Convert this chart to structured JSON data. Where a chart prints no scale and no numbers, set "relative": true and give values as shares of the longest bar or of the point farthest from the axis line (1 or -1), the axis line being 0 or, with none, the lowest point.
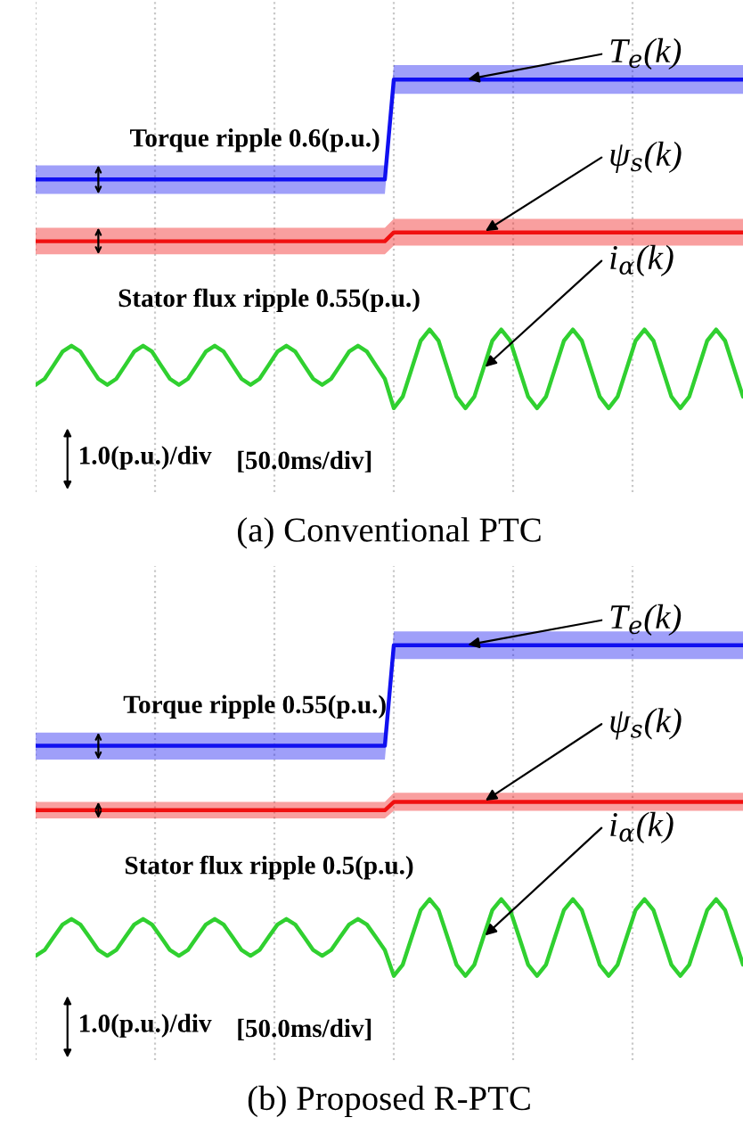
{
  "chart_data": [
    {
      "type": "line",
      "title": "(a) Conventional PTC",
      "relative": true,
      "grid": "x",
      "categories": [
        null,
        null,
        null,
        null,
        null,
        null,
        null,
        null,
        null,
        null,
        null,
        null,
        null,
        null,
        null,
        null,
        null,
        null,
        null,
        null,
        null,
        null,
        null,
        null,
        null,
        null,
        null,
        null,
        null,
        null,
        null,
        null,
        null,
        null,
        null,
        null,
        null,
        null,
        null,
        null,
        null,
        null,
        null,
        null,
        null,
        null,
        null,
        null,
        null,
        null,
        null,
        null,
        null,
        null,
        null,
        null,
        null,
        null,
        null,
        null,
        null,
        null,
        null,
        null,
        null,
        null,
        null,
        null,
        null,
        null,
        null,
        null,
        null,
        null,
        null,
        null,
        null,
        null,
        null,
        null
      ],
      "annotations": [
        "Torque ripple 0.6(p.u.)",
        "Stator flux ripple 0.55(p.u.)",
        "1.0(p.u.)/div",
        "[50.0ms/div]"
      ],
      "series": [
        {
          "name": "T$_{e}$(k)",
          "color": "#1010f0",
          "values": [
            0.696,
            0.696,
            0.696,
            0.696,
            0.696,
            0.696,
            0.696,
            0.696,
            0.696,
            0.696,
            0.696,
            0.696,
            0.696,
            0.696,
            0.696,
            0.696,
            0.696,
            0.696,
            0.696,
            0.696,
            0.696,
            0.696,
            0.696,
            0.696,
            0.696,
            0.696,
            0.696,
            0.696,
            0.696,
            0.696,
            0.696,
            0.696,
            0.696,
            0.696,
            0.696,
            0.696,
            0.696,
            0.696,
            0.696,
            0.696,
            1,
            1,
            1,
            1,
            1,
            1,
            1,
            1,
            1,
            1,
            1,
            1,
            1,
            1,
            1,
            1,
            1,
            1,
            1,
            1,
            1,
            1,
            1,
            1,
            1,
            1,
            1,
            1,
            1,
            1,
            1,
            1,
            1,
            1,
            1,
            1,
            1,
            1,
            1,
            1
          ],
          "lower": [
            0.652,
            0.652,
            0.652,
            0.652,
            0.652,
            0.652,
            0.652,
            0.652,
            0.652,
            0.652,
            0.652,
            0.652,
            0.652,
            0.652,
            0.652,
            0.652,
            0.652,
            0.652,
            0.652,
            0.652,
            0.652,
            0.652,
            0.652,
            0.652,
            0.652,
            0.652,
            0.652,
            0.652,
            0.652,
            0.652,
            0.652,
            0.652,
            0.652,
            0.652,
            0.652,
            0.652,
            0.652,
            0.652,
            0.652,
            0.652,
            0.957,
            0.957,
            0.957,
            0.957,
            0.957,
            0.957,
            0.957,
            0.957,
            0.957,
            0.957,
            0.957,
            0.957,
            0.957,
            0.957,
            0.957,
            0.957,
            0.957,
            0.957,
            0.957,
            0.957,
            0.957,
            0.957,
            0.957,
            0.957,
            0.957,
            0.957,
            0.957,
            0.957,
            0.957,
            0.957,
            0.957,
            0.957,
            0.957,
            0.957,
            0.957,
            0.957,
            0.957,
            0.957,
            0.957,
            0.957
          ],
          "upper": [
            0.739,
            0.739,
            0.739,
            0.739,
            0.739,
            0.739,
            0.739,
            0.739,
            0.739,
            0.739,
            0.739,
            0.739,
            0.739,
            0.739,
            0.739,
            0.739,
            0.739,
            0.739,
            0.739,
            0.739,
            0.739,
            0.739,
            0.739,
            0.739,
            0.739,
            0.739,
            0.739,
            0.739,
            0.739,
            0.739,
            0.739,
            0.739,
            0.739,
            0.739,
            0.739,
            0.739,
            0.739,
            0.739,
            0.739,
            0.739,
            1.044,
            1.044,
            1.044,
            1.044,
            1.044,
            1.044,
            1.044,
            1.044,
            1.044,
            1.044,
            1.044,
            1.044,
            1.044,
            1.044,
            1.044,
            1.044,
            1.044,
            1.044,
            1.044,
            1.044,
            1.044,
            1.044,
            1.044,
            1.044,
            1.044,
            1.044,
            1.044,
            1.044,
            1.044,
            1.044,
            1.044,
            1.044,
            1.044,
            1.044,
            1.044,
            1.044,
            1.044,
            1.044,
            1.044,
            1.044
          ]
        },
        {
          "name": "ψ$_{s}$(k)",
          "color": "#f01010",
          "values": [
            0.508,
            0.508,
            0.508,
            0.508,
            0.508,
            0.508,
            0.508,
            0.508,
            0.508,
            0.508,
            0.508,
            0.508,
            0.508,
            0.508,
            0.508,
            0.508,
            0.508,
            0.508,
            0.508,
            0.508,
            0.508,
            0.508,
            0.508,
            0.508,
            0.508,
            0.508,
            0.508,
            0.508,
            0.508,
            0.508,
            0.508,
            0.508,
            0.508,
            0.508,
            0.508,
            0.508,
            0.508,
            0.508,
            0.508,
            0.508,
            0.535,
            0.535,
            0.535,
            0.535,
            0.535,
            0.535,
            0.535,
            0.535,
            0.535,
            0.535,
            0.535,
            0.535,
            0.535,
            0.535,
            0.535,
            0.535,
            0.535,
            0.535,
            0.535,
            0.535,
            0.535,
            0.535,
            0.535,
            0.535,
            0.535,
            0.535,
            0.535,
            0.535,
            0.535,
            0.535,
            0.535,
            0.535,
            0.535,
            0.535,
            0.535,
            0.535,
            0.535,
            0.535,
            0.535,
            0.535
          ],
          "lower": [
            0.468,
            0.468,
            0.468,
            0.468,
            0.468,
            0.468,
            0.468,
            0.468,
            0.468,
            0.468,
            0.468,
            0.468,
            0.468,
            0.468,
            0.468,
            0.468,
            0.468,
            0.468,
            0.468,
            0.468,
            0.468,
            0.468,
            0.468,
            0.468,
            0.468,
            0.468,
            0.468,
            0.468,
            0.468,
            0.468,
            0.468,
            0.468,
            0.468,
            0.468,
            0.468,
            0.468,
            0.468,
            0.468,
            0.468,
            0.468,
            0.495,
            0.495,
            0.495,
            0.495,
            0.495,
            0.495,
            0.495,
            0.495,
            0.495,
            0.495,
            0.495,
            0.495,
            0.495,
            0.495,
            0.495,
            0.495,
            0.495,
            0.495,
            0.495,
            0.495,
            0.495,
            0.495,
            0.495,
            0.495,
            0.495,
            0.495,
            0.495,
            0.495,
            0.495,
            0.495,
            0.495,
            0.495,
            0.495,
            0.495,
            0.495,
            0.495,
            0.495,
            0.495,
            0.495,
            0.495
          ],
          "upper": [
            0.549,
            0.549,
            0.549,
            0.549,
            0.549,
            0.549,
            0.549,
            0.549,
            0.549,
            0.549,
            0.549,
            0.549,
            0.549,
            0.549,
            0.549,
            0.549,
            0.549,
            0.549,
            0.549,
            0.549,
            0.549,
            0.549,
            0.549,
            0.549,
            0.549,
            0.549,
            0.549,
            0.549,
            0.549,
            0.549,
            0.549,
            0.549,
            0.549,
            0.549,
            0.549,
            0.549,
            0.549,
            0.549,
            0.549,
            0.549,
            0.576,
            0.576,
            0.576,
            0.576,
            0.576,
            0.576,
            0.576,
            0.576,
            0.576,
            0.576,
            0.576,
            0.576,
            0.576,
            0.576,
            0.576,
            0.576,
            0.576,
            0.576,
            0.576,
            0.576,
            0.576,
            0.576,
            0.576,
            0.576,
            0.576,
            0.576,
            0.576,
            0.576,
            0.576,
            0.576,
            0.576,
            0.576,
            0.576,
            0.576,
            0.576,
            0.576,
            0.576,
            0.576,
            0.576,
            0.576
          ]
        },
        {
          "name": "i$_{α}$(k)",
          "color": "#30d030",
          "values": [
            0.071,
            0.089,
            0.13,
            0.172,
            0.19,
            0.172,
            0.13,
            0.089,
            0.071,
            0.089,
            0.13,
            0.172,
            0.19,
            0.172,
            0.13,
            0.089,
            0.071,
            0.089,
            0.13,
            0.172,
            0.19,
            0.172,
            0.13,
            0.089,
            0.071,
            0.089,
            0.13,
            0.172,
            0.19,
            0.172,
            0.13,
            0.089,
            0.071,
            0.089,
            0.13,
            0.172,
            0.19,
            0.172,
            0.13,
            0.089,
            0,
            0.035,
            0.12,
            0.205,
            0.239,
            0.205,
            0.12,
            0.035,
            0,
            0.035,
            0.12,
            0.205,
            0.239,
            0.205,
            0.12,
            0.035,
            0,
            0.035,
            0.12,
            0.205,
            0.239,
            0.205,
            0.12,
            0.035,
            0,
            0.035,
            0.12,
            0.205,
            0.239,
            0.205,
            0.12,
            0.035,
            0,
            0.035,
            0.12,
            0.205,
            0.239,
            0.205,
            0.12,
            0.035
          ]
        }
      ]
    },
    {
      "type": "line",
      "title": "(b) Proposed R-PTC",
      "relative": true,
      "grid": "x",
      "categories": [
        null,
        null,
        null,
        null,
        null,
        null,
        null,
        null,
        null,
        null,
        null,
        null,
        null,
        null,
        null,
        null,
        null,
        null,
        null,
        null,
        null,
        null,
        null,
        null,
        null,
        null,
        null,
        null,
        null,
        null,
        null,
        null,
        null,
        null,
        null,
        null,
        null,
        null,
        null,
        null,
        null,
        null,
        null,
        null,
        null,
        null,
        null,
        null,
        null,
        null,
        null,
        null,
        null,
        null,
        null,
        null,
        null,
        null,
        null,
        null,
        null,
        null,
        null,
        null,
        null,
        null,
        null,
        null,
        null,
        null,
        null,
        null,
        null,
        null,
        null,
        null,
        null,
        null,
        null,
        null
      ],
      "annotations": [
        "Torque ripple 0.55(p.u.)",
        "Stator flux ripple 0.5(p.u.)",
        "1.0(p.u.)/div",
        "[50.0ms/div]"
      ],
      "series": [
        {
          "name": "T$_{e}$(k)",
          "color": "#1010f0",
          "values": [
            0.696,
            0.696,
            0.696,
            0.696,
            0.696,
            0.696,
            0.696,
            0.696,
            0.696,
            0.696,
            0.696,
            0.696,
            0.696,
            0.696,
            0.696,
            0.696,
            0.696,
            0.696,
            0.696,
            0.696,
            0.696,
            0.696,
            0.696,
            0.696,
            0.696,
            0.696,
            0.696,
            0.696,
            0.696,
            0.696,
            0.696,
            0.696,
            0.696,
            0.696,
            0.696,
            0.696,
            0.696,
            0.696,
            0.696,
            0.696,
            1,
            1,
            1,
            1,
            1,
            1,
            1,
            1,
            1,
            1,
            1,
            1,
            1,
            1,
            1,
            1,
            1,
            1,
            1,
            1,
            1,
            1,
            1,
            1,
            1,
            1,
            1,
            1,
            1,
            1,
            1,
            1,
            1,
            1,
            1,
            1,
            1,
            1,
            1,
            1
          ],
          "lower": [
            0.654,
            0.654,
            0.654,
            0.654,
            0.654,
            0.654,
            0.654,
            0.654,
            0.654,
            0.654,
            0.654,
            0.654,
            0.654,
            0.654,
            0.654,
            0.654,
            0.654,
            0.654,
            0.654,
            0.654,
            0.654,
            0.654,
            0.654,
            0.654,
            0.654,
            0.654,
            0.654,
            0.654,
            0.654,
            0.654,
            0.654,
            0.654,
            0.654,
            0.654,
            0.654,
            0.654,
            0.654,
            0.654,
            0.654,
            0.654,
            0.958,
            0.958,
            0.958,
            0.958,
            0.958,
            0.958,
            0.958,
            0.958,
            0.958,
            0.958,
            0.958,
            0.958,
            0.958,
            0.958,
            0.958,
            0.958,
            0.958,
            0.958,
            0.958,
            0.958,
            0.958,
            0.958,
            0.958,
            0.958,
            0.958,
            0.958,
            0.958,
            0.958,
            0.958,
            0.958,
            0.958,
            0.958,
            0.958,
            0.958,
            0.958,
            0.958,
            0.958,
            0.958,
            0.958,
            0.958
          ],
          "upper": [
            0.736,
            0.736,
            0.736,
            0.736,
            0.736,
            0.736,
            0.736,
            0.736,
            0.736,
            0.736,
            0.736,
            0.736,
            0.736,
            0.736,
            0.736,
            0.736,
            0.736,
            0.736,
            0.736,
            0.736,
            0.736,
            0.736,
            0.736,
            0.736,
            0.736,
            0.736,
            0.736,
            0.736,
            0.736,
            0.736,
            0.736,
            0.736,
            0.736,
            0.736,
            0.736,
            0.736,
            0.736,
            0.736,
            0.736,
            0.736,
            1.042,
            1.042,
            1.042,
            1.042,
            1.042,
            1.042,
            1.042,
            1.042,
            1.042,
            1.042,
            1.042,
            1.042,
            1.042,
            1.042,
            1.042,
            1.042,
            1.042,
            1.042,
            1.042,
            1.042,
            1.042,
            1.042,
            1.042,
            1.042,
            1.042,
            1.042,
            1.042,
            1.042,
            1.042,
            1.042,
            1.042,
            1.042,
            1.042,
            1.042,
            1.042,
            1.042,
            1.042,
            1.042,
            1.042,
            1.042
          ]
        },
        {
          "name": "ψ$_{s}$(k)",
          "color": "#f01010",
          "values": [
            0.501,
            0.501,
            0.501,
            0.501,
            0.501,
            0.501,
            0.501,
            0.501,
            0.501,
            0.501,
            0.501,
            0.501,
            0.501,
            0.501,
            0.501,
            0.501,
            0.501,
            0.501,
            0.501,
            0.501,
            0.501,
            0.501,
            0.501,
            0.501,
            0.501,
            0.501,
            0.501,
            0.501,
            0.501,
            0.501,
            0.501,
            0.501,
            0.501,
            0.501,
            0.501,
            0.501,
            0.501,
            0.501,
            0.501,
            0.501,
            0.526,
            0.526,
            0.526,
            0.526,
            0.526,
            0.526,
            0.526,
            0.526,
            0.526,
            0.526,
            0.526,
            0.526,
            0.526,
            0.526,
            0.526,
            0.526,
            0.526,
            0.526,
            0.526,
            0.526,
            0.526,
            0.526,
            0.526,
            0.526,
            0.526,
            0.526,
            0.526,
            0.526,
            0.526,
            0.526,
            0.526,
            0.526,
            0.526,
            0.526,
            0.526,
            0.526,
            0.526,
            0.526,
            0.526,
            0.526
          ],
          "lower": [
            0.476,
            0.476,
            0.476,
            0.476,
            0.476,
            0.476,
            0.476,
            0.476,
            0.476,
            0.476,
            0.476,
            0.476,
            0.476,
            0.476,
            0.476,
            0.476,
            0.476,
            0.476,
            0.476,
            0.476,
            0.476,
            0.476,
            0.476,
            0.476,
            0.476,
            0.476,
            0.476,
            0.476,
            0.476,
            0.476,
            0.476,
            0.476,
            0.476,
            0.476,
            0.476,
            0.476,
            0.476,
            0.476,
            0.476,
            0.476,
            0.499,
            0.499,
            0.499,
            0.499,
            0.499,
            0.499,
            0.499,
            0.499,
            0.499,
            0.499,
            0.499,
            0.499,
            0.499,
            0.499,
            0.499,
            0.499,
            0.499,
            0.499,
            0.499,
            0.499,
            0.499,
            0.499,
            0.499,
            0.499,
            0.499,
            0.499,
            0.499,
            0.499,
            0.499,
            0.499,
            0.499,
            0.499,
            0.499,
            0.499,
            0.499,
            0.499,
            0.499,
            0.499,
            0.499,
            0.499
          ],
          "upper": [
            0.526,
            0.526,
            0.526,
            0.526,
            0.526,
            0.526,
            0.526,
            0.526,
            0.526,
            0.526,
            0.526,
            0.526,
            0.526,
            0.526,
            0.526,
            0.526,
            0.526,
            0.526,
            0.526,
            0.526,
            0.526,
            0.526,
            0.526,
            0.526,
            0.526,
            0.526,
            0.526,
            0.526,
            0.526,
            0.526,
            0.526,
            0.526,
            0.526,
            0.526,
            0.526,
            0.526,
            0.526,
            0.526,
            0.526,
            0.526,
            0.554,
            0.554,
            0.554,
            0.554,
            0.554,
            0.554,
            0.554,
            0.554,
            0.554,
            0.554,
            0.554,
            0.554,
            0.554,
            0.554,
            0.554,
            0.554,
            0.554,
            0.554,
            0.554,
            0.554,
            0.554,
            0.554,
            0.554,
            0.554,
            0.554,
            0.554,
            0.554,
            0.554,
            0.554,
            0.554,
            0.554,
            0.554,
            0.554,
            0.554,
            0.554,
            0.554,
            0.554,
            0.554,
            0.554,
            0.554
          ]
        },
        {
          "name": "i$_{α}$(k)",
          "color": "#30d030",
          "values": [
            0.061,
            0.078,
            0.117,
            0.155,
            0.172,
            0.155,
            0.117,
            0.078,
            0.061,
            0.078,
            0.117,
            0.155,
            0.172,
            0.155,
            0.117,
            0.078,
            0.061,
            0.078,
            0.117,
            0.155,
            0.172,
            0.155,
            0.117,
            0.078,
            0.061,
            0.078,
            0.117,
            0.155,
            0.172,
            0.155,
            0.117,
            0.078,
            0.061,
            0.078,
            0.117,
            0.155,
            0.172,
            0.155,
            0.117,
            0.078,
            0,
            0.034,
            0.117,
            0.199,
            0.232,
            0.199,
            0.117,
            0.034,
            0,
            0.034,
            0.117,
            0.199,
            0.232,
            0.199,
            0.117,
            0.034,
            0,
            0.034,
            0.117,
            0.199,
            0.232,
            0.199,
            0.117,
            0.034,
            0,
            0.034,
            0.117,
            0.199,
            0.232,
            0.199,
            0.117,
            0.034,
            0,
            0.034,
            0.117,
            0.199,
            0.232,
            0.199,
            0.117,
            0.034
          ]
        }
      ]
    }
  ]
}
